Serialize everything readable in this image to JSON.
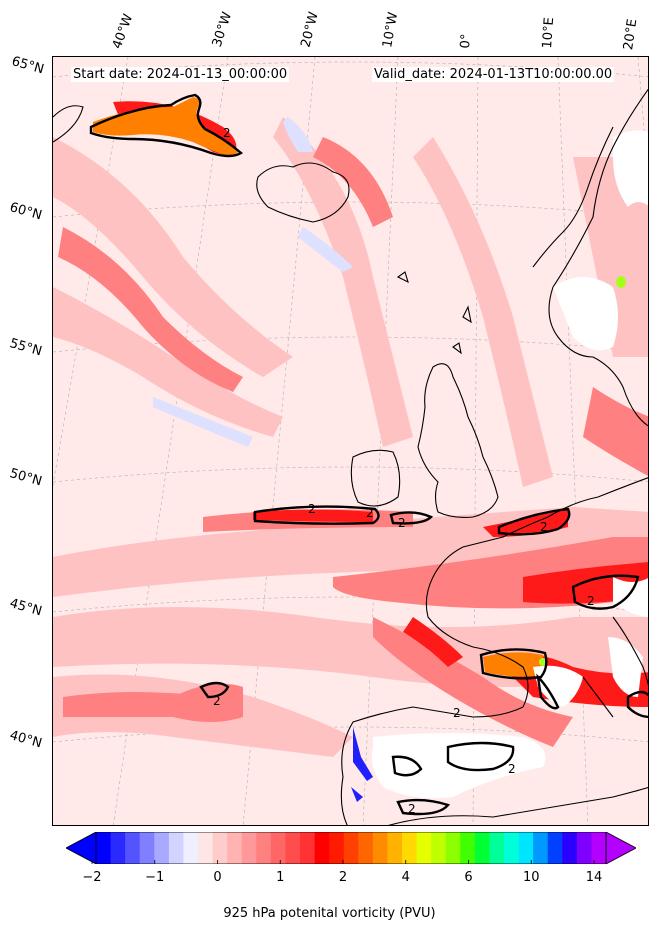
{
  "map": {
    "start_label": "Start date: 2024-01-13_00:00:00",
    "valid_label": "Valid_date: 2024-01-13T10:00:00.00",
    "lon_labels": [
      "40°W",
      "30°W",
      "20°W",
      "10°W",
      "0°",
      "10°E",
      "20°E"
    ],
    "lat_labels": [
      "65°N",
      "60°N",
      "55°N",
      "50°N",
      "45°N",
      "40°N"
    ],
    "contour_value_label": "2",
    "colors": {
      "background_pink": "#ffe9e9",
      "light_red": "#ffb3b3",
      "mid_red": "#ff6666",
      "strong_red": "#ff1a1a",
      "orange": "#ff7f00",
      "yellow_green": "#a6ff1a",
      "light_blue": "#dde0ff",
      "blue": "#2020ff",
      "land_white": "#ffffff",
      "coast": "#000000"
    }
  },
  "colorbar": {
    "label": "925 hPa potenital vorticity (PVU)",
    "ticks": [
      "−2",
      "−1",
      "0",
      "1",
      "2",
      "4",
      "6",
      "10",
      "14"
    ],
    "colors": [
      "#0000ff",
      "#2a2aff",
      "#5454ff",
      "#7f7fff",
      "#a9a9ff",
      "#d3d3ff",
      "#efefff",
      "#ffe6e6",
      "#ffcccc",
      "#ffb3b3",
      "#ff9999",
      "#ff8080",
      "#ff6666",
      "#ff4d4d",
      "#ff3333",
      "#ff0000",
      "#ff1a00",
      "#ff4000",
      "#ff6600",
      "#ff8c00",
      "#ffb300",
      "#ffd900",
      "#e5ff00",
      "#bfff00",
      "#8cff00",
      "#40ff00",
      "#00ff33",
      "#00ff99",
      "#00ffd9",
      "#00e5ff",
      "#0099ff",
      "#0040ff",
      "#2a00ff",
      "#7f00ff",
      "#b300ff"
    ]
  }
}
